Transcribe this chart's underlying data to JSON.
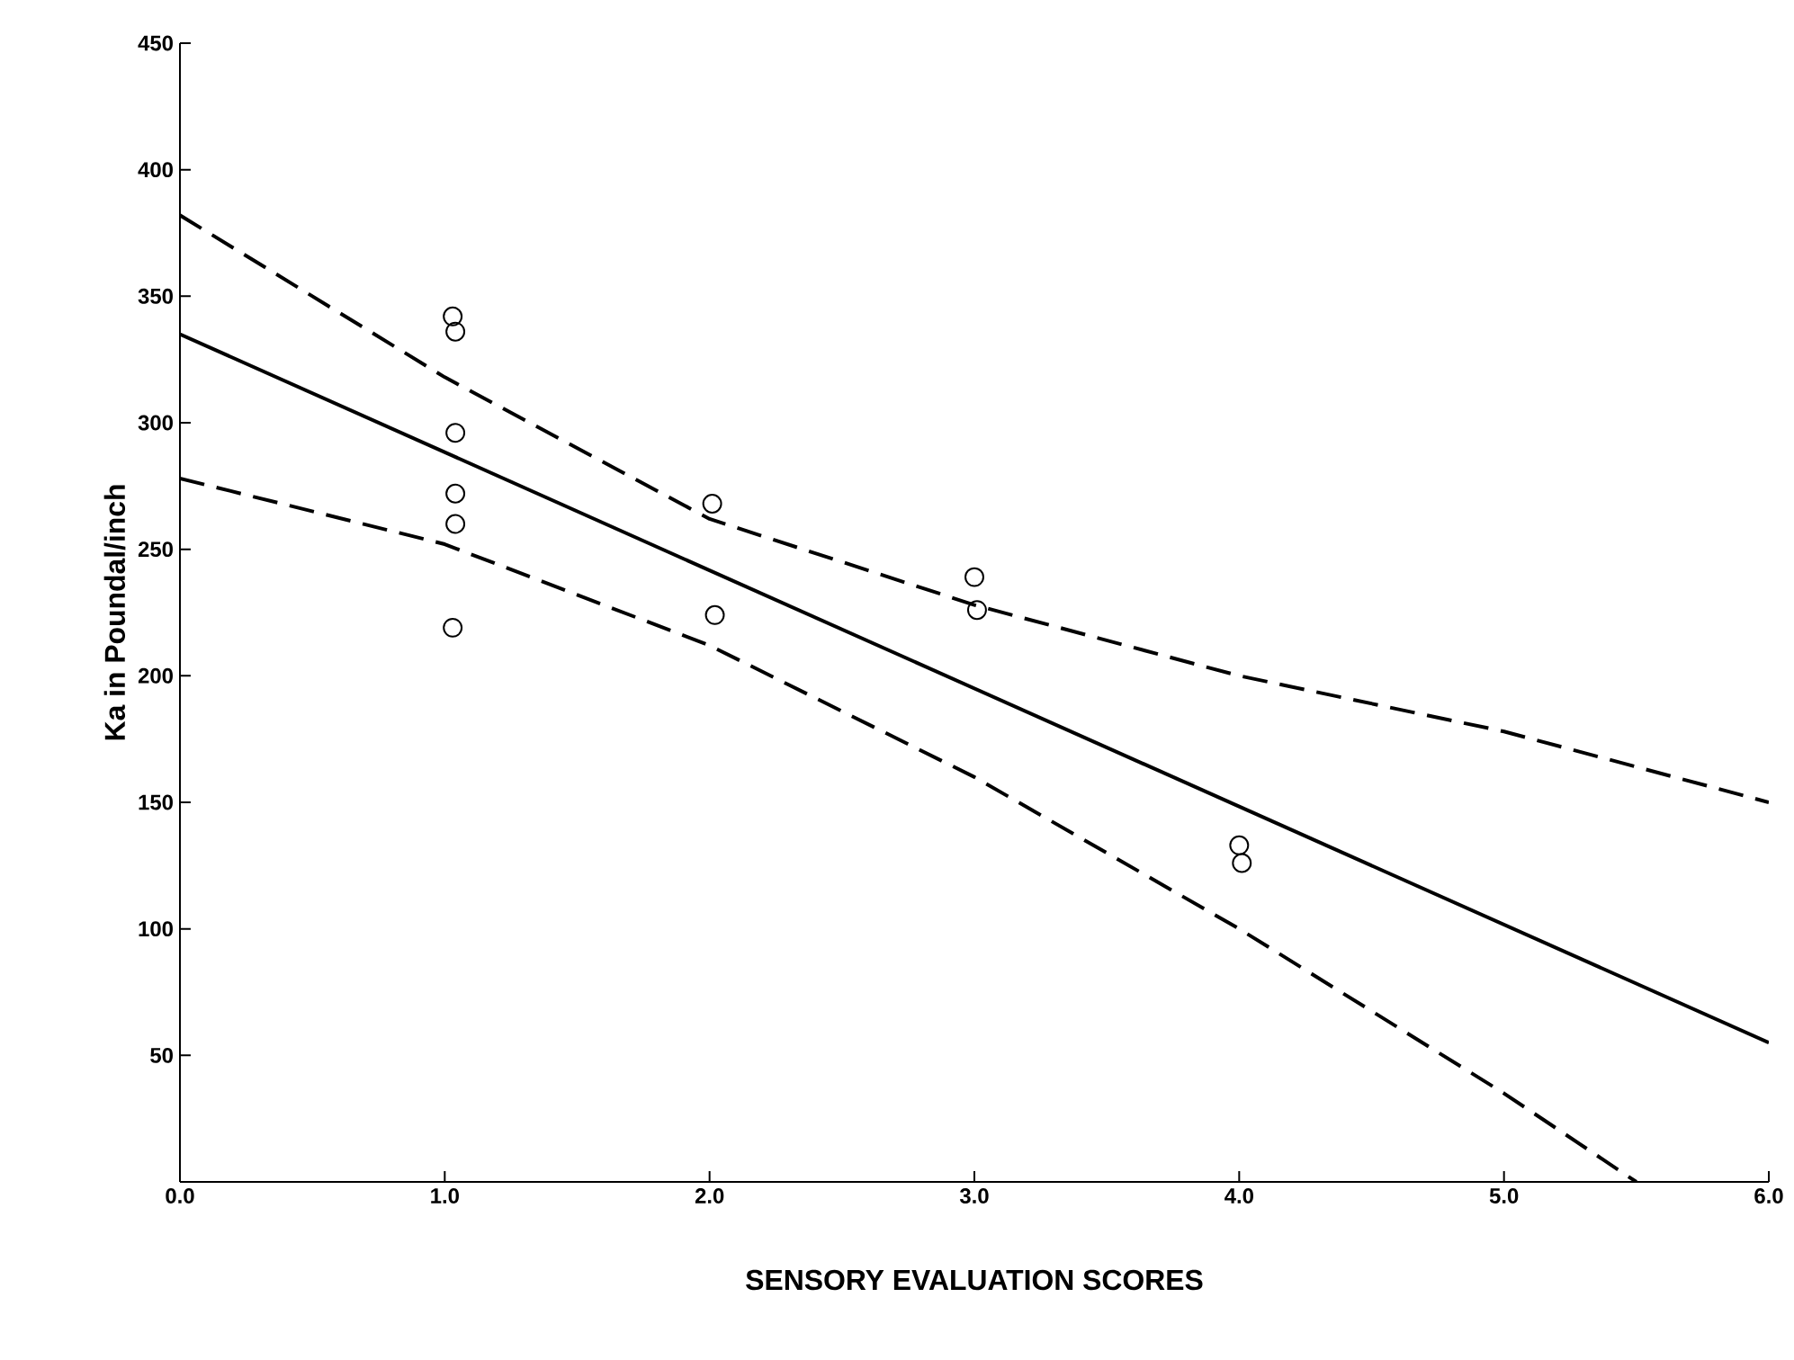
{
  "chart_data": {
    "type": "scatter",
    "xlabel": "SENSORY EVALUATION SCORES",
    "ylabel": "Ka in Poundal/inch",
    "xlim": [
      0,
      6
    ],
    "ylim": [
      0,
      450
    ],
    "xticks": [
      {
        "value": 0,
        "label": "0.0"
      },
      {
        "value": 1,
        "label": "1.0"
      },
      {
        "value": 2,
        "label": "2.0"
      },
      {
        "value": 3,
        "label": "3.0"
      },
      {
        "value": 4,
        "label": "4.0"
      },
      {
        "value": 5,
        "label": "5.0"
      },
      {
        "value": 6,
        "label": "6.0"
      }
    ],
    "yticks": [
      50,
      100,
      150,
      200,
      250,
      300,
      350,
      400,
      450
    ],
    "grid": false,
    "series": [
      {
        "marker": "circle",
        "color": "#000000",
        "x": [
          1.03,
          1.04,
          1.04,
          1.04,
          1.04,
          1.03,
          2.01,
          2.02,
          3.0,
          3.01,
          4.0,
          4.01
        ],
        "values": [
          342,
          336,
          296,
          272,
          260,
          219,
          268,
          224,
          239,
          226,
          133,
          126
        ]
      },
      {
        "type": "line",
        "line_style": "solid",
        "marker": "none",
        "color": "#000000",
        "x": [
          0,
          6
        ],
        "values": [
          335,
          55
        ]
      },
      {
        "type": "line",
        "line_style": "dashed",
        "marker": "none",
        "color": "#000000",
        "x": [
          0,
          1,
          2,
          3,
          4,
          5,
          6
        ],
        "values": [
          382,
          318,
          262,
          228,
          200,
          178,
          150
        ]
      },
      {
        "type": "line",
        "line_style": "dashed",
        "marker": "none",
        "color": "#000000",
        "x": [
          0,
          1,
          2,
          3,
          4,
          5,
          5.5
        ],
        "values": [
          278,
          252,
          212,
          160,
          100,
          35,
          0
        ]
      }
    ]
  }
}
